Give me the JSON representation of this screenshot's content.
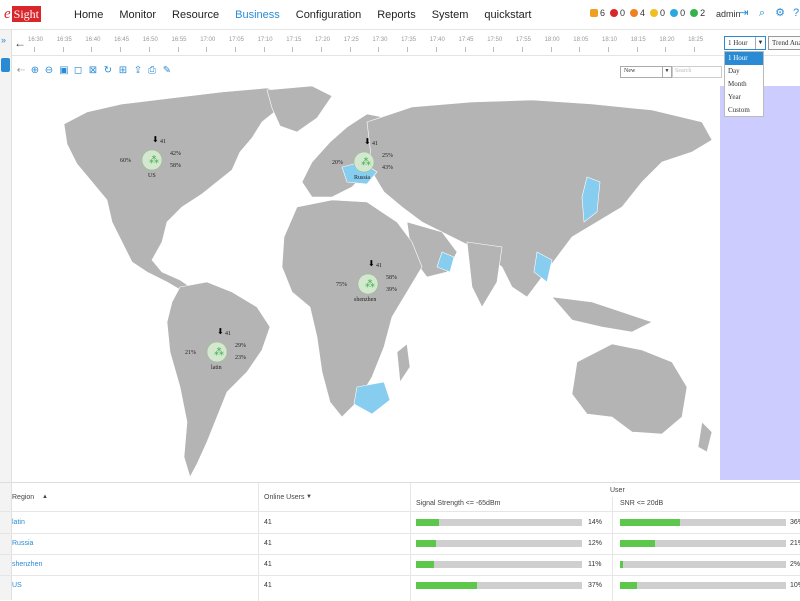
{
  "app": {
    "logo_e": "e",
    "logo_rest": "Sight"
  },
  "nav": [
    {
      "label": "Home",
      "active": false
    },
    {
      "label": "Monitor",
      "active": false
    },
    {
      "label": "Resource",
      "active": false
    },
    {
      "label": "Business",
      "active": true
    },
    {
      "label": "Configuration",
      "active": false
    },
    {
      "label": "Reports",
      "active": false
    },
    {
      "label": "System",
      "active": false
    },
    {
      "label": "quickstart",
      "active": false
    }
  ],
  "alarms": [
    {
      "name": "warning-bell",
      "count": "6",
      "color": "#f0a020"
    },
    {
      "name": "critical",
      "count": "0",
      "color": "#d9262a"
    },
    {
      "name": "major",
      "count": "4",
      "color": "#f08020"
    },
    {
      "name": "minor",
      "count": "0",
      "color": "#f0c020"
    },
    {
      "name": "info",
      "count": "0",
      "color": "#2aa8e0"
    },
    {
      "name": "cleared",
      "count": "2",
      "color": "#36b24a"
    }
  ],
  "user": {
    "name": "admin"
  },
  "timeline": {
    "ticks": [
      "16:30",
      "16:35",
      "16:40",
      "16:45",
      "16:50",
      "16:55",
      "17:00",
      "17:05",
      "17:10",
      "17:15",
      "17:20",
      "17:25",
      "17:30",
      "17:35",
      "17:40",
      "17:45",
      "17:50",
      "17:55",
      "18:00",
      "18:05",
      "18:10",
      "18:15",
      "18:20",
      "18:25"
    ],
    "range_select": "1 Hour",
    "trend_button": "Trend Ana",
    "range_options": [
      "1 Hour",
      "Day",
      "Month",
      "Year",
      "Custom"
    ]
  },
  "toolbar": {
    "view_select": "New",
    "search_placeholder": "Search"
  },
  "map_sites": [
    {
      "name": "US",
      "online": "41",
      "signal": "42%",
      "snr": "58%",
      "fail": "60%"
    },
    {
      "name": "Russia",
      "online": "41",
      "signal": "25%",
      "snr": "43%",
      "fail": "20%"
    },
    {
      "name": "shenzhen",
      "online": "41",
      "signal": "58%",
      "snr": "39%",
      "fail": "75%"
    },
    {
      "name": "latin",
      "online": "41",
      "signal": "29%",
      "snr": "23%",
      "fail": "21%"
    }
  ],
  "table": {
    "headers": {
      "region": "Region",
      "online": "Online Users",
      "group": "User",
      "signal": "Signal Strength <= -65dBm",
      "snr": "SNR <= 20dB"
    },
    "rows": [
      {
        "region": "latin",
        "online": "41",
        "signal_pct": 14,
        "signal_label": "14%",
        "snr_pct": 36,
        "snr_label": "36%"
      },
      {
        "region": "Russia",
        "online": "41",
        "signal_pct": 12,
        "signal_label": "12%",
        "snr_pct": 21,
        "snr_label": "21%"
      },
      {
        "region": "shenzhen",
        "online": "41",
        "signal_pct": 11,
        "signal_label": "11%",
        "snr_pct": 2,
        "snr_label": "2%"
      },
      {
        "region": "US",
        "online": "41",
        "signal_pct": 37,
        "signal_label": "37%",
        "snr_pct": 10,
        "snr_label": "10%"
      }
    ]
  },
  "colors": {
    "accent": "#2a8bd4",
    "bar_fill": "#5cc74a",
    "land": "#b4b4b4",
    "highlight": "#87cdf0",
    "panel": "#ccccff"
  }
}
